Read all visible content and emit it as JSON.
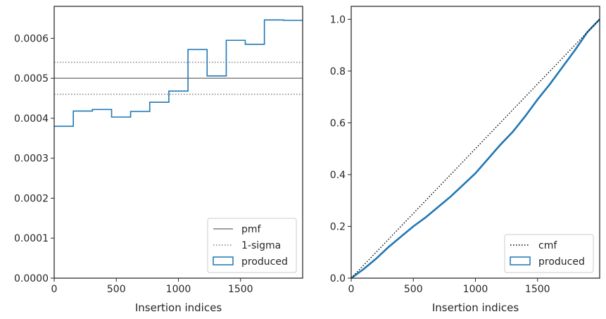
{
  "chart_data": [
    {
      "type": "step",
      "xlabel": "Insertion indices",
      "ylabel": "",
      "xlim": [
        0,
        2000
      ],
      "ylim": [
        0,
        0.00068
      ],
      "x_ticks": [
        0,
        500,
        1000,
        1500
      ],
      "x_tick_labels": [
        "0",
        "500",
        "1000",
        "1500"
      ],
      "y_ticks": [
        0,
        0.0001,
        0.0002,
        0.0003,
        0.0004,
        0.0005,
        0.0006
      ],
      "y_tick_labels": [
        "0.0000",
        "0.0001",
        "0.0002",
        "0.0003",
        "0.0004",
        "0.0005",
        "0.0006"
      ],
      "grid": false,
      "legend_position": "lower-right",
      "hlines": [
        {
          "name": "pmf",
          "value": 0.0005,
          "style": "solid",
          "color": "#808080"
        },
        {
          "name": "1-sigma",
          "value": 0.00054,
          "style": "dotted",
          "color": "#808080"
        },
        {
          "name": "1-sigma-lower",
          "value": 0.00046,
          "style": "dotted",
          "color": "#808080"
        }
      ],
      "series": [
        {
          "name": "produced",
          "color": "#1f77b4",
          "bin_edges": [
            0,
            154,
            308,
            462,
            615,
            769,
            923,
            1077,
            1231,
            1385,
            1538,
            1692,
            1846,
            2000
          ],
          "values": [
            0.00038,
            0.000418,
            0.000422,
            0.000403,
            0.000417,
            0.00044,
            0.000468,
            0.000572,
            0.000506,
            0.000595,
            0.000585,
            0.000646,
            0.000645
          ]
        }
      ],
      "legend": [
        {
          "label": "pmf",
          "kind": "solid-line",
          "color": "#808080"
        },
        {
          "label": "1-sigma",
          "kind": "dotted-line",
          "color": "#808080"
        },
        {
          "label": "produced",
          "kind": "box",
          "color": "#1f77b4"
        }
      ]
    },
    {
      "type": "line",
      "xlabel": "Insertion indices",
      "ylabel": "",
      "xlim": [
        0,
        2000
      ],
      "ylim": [
        0,
        1.05
      ],
      "x_ticks": [
        0,
        500,
        1000,
        1500
      ],
      "x_tick_labels": [
        "0",
        "500",
        "1000",
        "1500"
      ],
      "y_ticks": [
        0,
        0.2,
        0.4,
        0.6,
        0.8,
        1.0
      ],
      "y_tick_labels": [
        "0.0",
        "0.2",
        "0.4",
        "0.6",
        "0.8",
        "1.0"
      ],
      "grid": false,
      "legend_position": "lower-right",
      "series": [
        {
          "name": "cmf",
          "color": "#000000",
          "style": "dotted",
          "x": [
            0,
            2000
          ],
          "y": [
            0,
            1.0
          ]
        },
        {
          "name": "produced",
          "color": "#1f77b4",
          "style": "solid",
          "x": [
            0,
            100,
            200,
            300,
            400,
            500,
            600,
            700,
            800,
            900,
            1000,
            1100,
            1200,
            1300,
            1400,
            1500,
            1600,
            1700,
            1800,
            1900,
            2000
          ],
          "y": [
            0,
            0.035,
            0.075,
            0.12,
            0.16,
            0.2,
            0.235,
            0.275,
            0.315,
            0.36,
            0.405,
            0.46,
            0.515,
            0.565,
            0.625,
            0.69,
            0.75,
            0.815,
            0.88,
            0.95,
            1.0
          ]
        }
      ],
      "legend": [
        {
          "label": "cmf",
          "kind": "dotted-line",
          "color": "#000000"
        },
        {
          "label": "produced",
          "kind": "box",
          "color": "#1f77b4"
        }
      ]
    }
  ]
}
